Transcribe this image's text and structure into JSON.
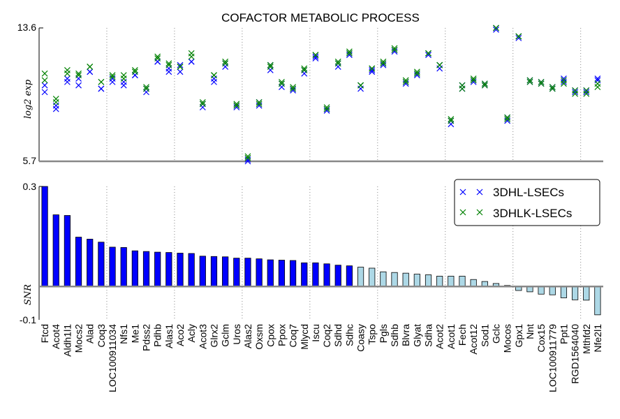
{
  "chart_data": [
    {
      "type": "scatter",
      "title": "COFACTOR METABOLIC PROCESS",
      "ylabel": "log2 exp",
      "ylim": [
        5.7,
        13.6
      ],
      "yticks": [
        "13.6",
        "5.7"
      ],
      "categories": [
        "Ftcd",
        "Acot4",
        "Aldh1l1",
        "Mocs2",
        "Alad",
        "Coq3",
        "LOC100911034",
        "Nfs1",
        "Me1",
        "Pdss2",
        "Pdhb",
        "Alas1",
        "Aco2",
        "Acly",
        "Acot3",
        "Glrx2",
        "Gclm",
        "Uros",
        "Alas2",
        "Oxsm",
        "Cpox",
        "Ppox",
        "Coq7",
        "Mlycd",
        "Iscu",
        "Coq2",
        "Sdhd",
        "Sdhc",
        "Coasy",
        "Tspo",
        "Pgls",
        "Sdhb",
        "Blvra",
        "Glyat",
        "Sdha",
        "Acot2",
        "Acot1",
        "Fech",
        "Acot12",
        "Sod1",
        "Gclc",
        "Mocos",
        "Gpx1",
        "Nnt",
        "Cox15",
        "LOC100911779",
        "Ppt1",
        "RGD1564040",
        "Mthfd2",
        "Nfe2l1"
      ],
      "series": [
        {
          "name": "3DHL-LSECs",
          "color": "#0000ff",
          "points": [
            [
              9.8,
              10.2
            ],
            [
              8.8,
              9.0
            ],
            [
              10.4,
              10.6
            ],
            [
              10.2,
              10.6
            ],
            [
              11.0,
              11.0
            ],
            [
              10.0,
              10.0
            ],
            [
              10.4,
              10.6
            ],
            [
              10.2,
              10.4
            ],
            [
              10.8,
              10.8
            ],
            [
              9.8,
              10.0
            ],
            [
              11.6,
              11.6
            ],
            [
              11.0,
              11.2
            ],
            [
              11.0,
              11.4
            ],
            [
              11.6,
              11.6
            ],
            [
              8.9,
              9.1
            ],
            [
              10.4,
              10.6
            ],
            [
              11.3,
              11.5
            ],
            [
              8.9,
              9.0
            ],
            [
              5.7,
              5.8
            ],
            [
              9.0,
              9.2
            ],
            [
              11.1,
              11.4
            ],
            [
              10.1,
              10.3
            ],
            [
              9.9,
              10.0
            ],
            [
              10.9,
              11.1
            ],
            [
              11.8,
              11.9
            ],
            [
              8.7,
              8.8
            ],
            [
              11.3,
              11.5
            ],
            [
              12.0,
              12.1
            ],
            [
              10.0,
              10.2
            ],
            [
              11.0,
              11.1
            ],
            [
              11.4,
              11.5
            ],
            [
              12.2,
              12.3
            ],
            [
              10.3,
              10.4
            ],
            [
              10.8,
              10.9
            ],
            [
              12.0,
              12.1
            ],
            [
              11.2,
              11.4
            ],
            [
              7.9,
              8.1
            ],
            [
              10.0,
              10.2
            ],
            [
              10.4,
              10.5
            ],
            [
              10.2,
              10.3
            ],
            [
              13.5,
              13.6
            ],
            [
              8.1,
              8.3
            ],
            [
              13.0,
              13.1
            ],
            [
              10.4,
              10.5
            ],
            [
              10.3,
              10.4
            ],
            [
              10.0,
              10.1
            ],
            [
              10.4,
              10.6
            ],
            [
              9.8,
              9.9
            ],
            [
              9.8,
              9.9
            ],
            [
              10.5,
              10.6
            ]
          ]
        },
        {
          "name": "3DHLK-LSECs",
          "color": "#008000",
          "points": [
            [
              10.5,
              10.9
            ],
            [
              9.2,
              9.4
            ],
            [
              10.9,
              11.1
            ],
            [
              10.8,
              10.9
            ],
            [
              11.3,
              11.3
            ],
            [
              10.4,
              10.4
            ],
            [
              10.7,
              10.8
            ],
            [
              10.6,
              10.8
            ],
            [
              11.0,
              11.1
            ],
            [
              10.0,
              10.1
            ],
            [
              11.8,
              11.9
            ],
            [
              11.4,
              11.5
            ],
            [
              11.3,
              11.3
            ],
            [
              11.9,
              12.1
            ],
            [
              9.1,
              9.2
            ],
            [
              10.8,
              10.8
            ],
            [
              11.5,
              11.6
            ],
            [
              9.0,
              9.1
            ],
            [
              5.9,
              6.0
            ],
            [
              9.1,
              9.2
            ],
            [
              11.3,
              11.4
            ],
            [
              10.3,
              10.4
            ],
            [
              10.0,
              10.1
            ],
            [
              11.1,
              11.2
            ],
            [
              12.0,
              12.0
            ],
            [
              8.8,
              8.9
            ],
            [
              11.5,
              11.6
            ],
            [
              12.1,
              12.2
            ],
            [
              10.2,
              10.2
            ],
            [
              11.2,
              11.2
            ],
            [
              11.5,
              11.6
            ],
            [
              12.3,
              12.4
            ],
            [
              10.4,
              10.5
            ],
            [
              10.9,
              11.0
            ],
            [
              12.1,
              12.1
            ],
            [
              11.4,
              11.4
            ],
            [
              8.1,
              8.2
            ],
            [
              10.0,
              10.2
            ],
            [
              10.5,
              10.6
            ],
            [
              10.2,
              10.3
            ],
            [
              13.6,
              13.6
            ],
            [
              8.2,
              8.3
            ],
            [
              13.1,
              13.1
            ],
            [
              10.4,
              10.5
            ],
            [
              10.3,
              10.4
            ],
            [
              10.0,
              10.1
            ],
            [
              10.3,
              10.5
            ],
            [
              9.7,
              9.9
            ],
            [
              9.7,
              9.9
            ],
            [
              10.1,
              10.3
            ]
          ]
        }
      ]
    },
    {
      "type": "bar",
      "ylabel": "SNR",
      "ylim": [
        -0.1,
        0.3
      ],
      "yticks": [
        "0.3",
        "-0.1"
      ],
      "categories": [
        "Ftcd",
        "Acot4",
        "Aldh1l1",
        "Mocs2",
        "Alad",
        "Coq3",
        "LOC100911034",
        "Nfs1",
        "Me1",
        "Pdss2",
        "Pdhb",
        "Alas1",
        "Aco2",
        "Acly",
        "Acot3",
        "Glrx2",
        "Gclm",
        "Uros",
        "Alas2",
        "Oxsm",
        "Cpox",
        "Ppox",
        "Coq7",
        "Mlycd",
        "Iscu",
        "Coq2",
        "Sdhd",
        "Sdhc",
        "Coasy",
        "Tspo",
        "Pgls",
        "Sdhb",
        "Blvra",
        "Glyat",
        "Sdha",
        "Acot2",
        "Acot1",
        "Fech",
        "Acot12",
        "Sod1",
        "Gclc",
        "Mocos",
        "Gpx1",
        "Nnt",
        "Cox15",
        "LOC100911779",
        "Ppt1",
        "RGD1564040",
        "Mthfd2",
        "Nfe2l1"
      ],
      "values": [
        0.3,
        0.215,
        0.213,
        0.148,
        0.142,
        0.133,
        0.118,
        0.117,
        0.107,
        0.105,
        0.103,
        0.102,
        0.1,
        0.099,
        0.091,
        0.09,
        0.089,
        0.085,
        0.085,
        0.083,
        0.08,
        0.079,
        0.078,
        0.071,
        0.071,
        0.068,
        0.064,
        0.062,
        0.058,
        0.055,
        0.044,
        0.042,
        0.04,
        0.037,
        0.035,
        0.031,
        0.031,
        0.031,
        0.021,
        0.015,
        0.009,
        0.003,
        -0.012,
        -0.016,
        -0.023,
        -0.025,
        -0.034,
        -0.04,
        -0.041,
        -0.085
      ],
      "colors": {
        "strong": "#0000ff",
        "weak": "#add8e6"
      },
      "strong_count": 28,
      "legend": {
        "placement": "top-right",
        "entries": [
          "3DHL-LSECs",
          "3DHLK-LSECs"
        ]
      }
    }
  ]
}
